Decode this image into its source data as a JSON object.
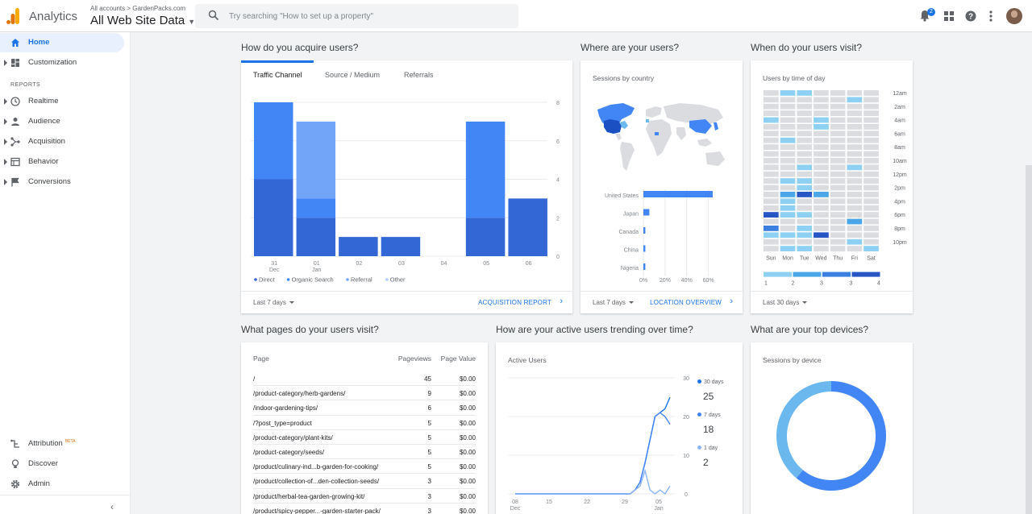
{
  "header": {
    "brand": "Analytics",
    "account_crumb": "All accounts > GardenPacks.com",
    "view_name": "All Web Site Data",
    "search_placeholder": "Try searching \"How to set up a property\"",
    "notification_count": "2",
    "icons": [
      "bell-icon",
      "apps-icon",
      "help-icon",
      "more-vert-icon"
    ]
  },
  "sidebar": {
    "items": [
      {
        "label": "Home",
        "icon": "home-icon",
        "active": true
      },
      {
        "label": "Customization",
        "icon": "dashboard-icon"
      },
      {
        "label": "Realtime",
        "icon": "clock-icon"
      },
      {
        "label": "Audience",
        "icon": "person-icon"
      },
      {
        "label": "Acquisition",
        "icon": "acquisition-icon"
      },
      {
        "label": "Behavior",
        "icon": "behavior-icon"
      },
      {
        "label": "Conversions",
        "icon": "flag-icon"
      }
    ],
    "reports_label": "REPORTS",
    "bottom_items": [
      {
        "label": "Attribution",
        "icon": "attribution-icon",
        "badge": "BETA"
      },
      {
        "label": "Discover",
        "icon": "bulb-icon"
      },
      {
        "label": "Admin",
        "icon": "gear-icon"
      }
    ]
  },
  "acquire": {
    "section_title": "How do you acquire users?",
    "tabs": [
      "Traffic Channel",
      "Source / Medium",
      "Referrals"
    ],
    "footer_range": "Last 7 days",
    "footer_link": "ACQUISITION REPORT",
    "chart_data": {
      "type": "bar",
      "stacked": true,
      "categories": [
        "31\nDec",
        "01\nJan",
        "02",
        "03",
        "04",
        "05",
        "06"
      ],
      "series": [
        {
          "name": "Direct",
          "color": "#3367d6",
          "values": [
            4,
            2,
            1,
            1,
            0,
            2,
            3
          ]
        },
        {
          "name": "Organic Search",
          "color": "#4285f4",
          "values": [
            4,
            1,
            0,
            0,
            0,
            5,
            0
          ]
        },
        {
          "name": "Referral",
          "color": "#72a4f7",
          "values": [
            0,
            4,
            0,
            0,
            0,
            0,
            0
          ]
        },
        {
          "name": "Other",
          "color": "#aecbfa",
          "values": [
            0,
            0,
            0,
            0,
            0,
            0,
            0
          ]
        }
      ],
      "y_ticks": [
        0,
        2,
        4,
        6,
        8
      ],
      "ylim": [
        0,
        8
      ]
    }
  },
  "where": {
    "section_title": "Where are your users?",
    "card_title": "Sessions by country",
    "footer_range": "Last 7 days",
    "footer_link": "LOCATION OVERVIEW",
    "chart_data": {
      "type": "bar",
      "orientation": "horizontal",
      "categories": [
        "United States",
        "Japan",
        "Canada",
        "China",
        "Nigeria"
      ],
      "values": [
        64,
        5.5,
        1.8,
        1.8,
        1.8
      ],
      "x_ticks": [
        "0%",
        "20%",
        "40%",
        "60%"
      ],
      "xlim": [
        0,
        70
      ]
    }
  },
  "when": {
    "section_title": "When do your users visit?",
    "card_title": "Users by time of day",
    "footer_range": "Last 30 days",
    "days": [
      "Sun",
      "Mon",
      "Tue",
      "Wed",
      "Thu",
      "Fri",
      "Sat"
    ],
    "hours": [
      "12am",
      "2am",
      "4am",
      "6am",
      "8am",
      "10am",
      "12pm",
      "2pm",
      "4pm",
      "6pm",
      "8pm",
      "10pm"
    ],
    "legend": [
      "1",
      "2",
      "3",
      "3",
      "4"
    ],
    "chart_data": {
      "type": "heatmap",
      "rows_are": "hour 0-23",
      "cols_are": "Sun..Sat",
      "values": [
        [
          0,
          1,
          1,
          0,
          0,
          0,
          0
        ],
        [
          0,
          0,
          0,
          0,
          0,
          1,
          0
        ],
        [
          0,
          0,
          0,
          0,
          0,
          0,
          0
        ],
        [
          0,
          0,
          0,
          0,
          0,
          0,
          0
        ],
        [
          1,
          0,
          0,
          1,
          0,
          0,
          0
        ],
        [
          0,
          0,
          0,
          1,
          0,
          0,
          0
        ],
        [
          0,
          0,
          0,
          0,
          0,
          0,
          0
        ],
        [
          0,
          1,
          0,
          0,
          0,
          0,
          0
        ],
        [
          0,
          0,
          0,
          0,
          0,
          0,
          0
        ],
        [
          0,
          0,
          0,
          0,
          0,
          0,
          0
        ],
        [
          0,
          0,
          0,
          0,
          0,
          0,
          0
        ],
        [
          0,
          0,
          1,
          0,
          0,
          1,
          0
        ],
        [
          0,
          0,
          0,
          0,
          0,
          0,
          0
        ],
        [
          0,
          1,
          1,
          0,
          0,
          0,
          0
        ],
        [
          0,
          0,
          1,
          0,
          0,
          0,
          0
        ],
        [
          0,
          2,
          4,
          2,
          0,
          0,
          0
        ],
        [
          0,
          1,
          0,
          0,
          0,
          0,
          0
        ],
        [
          0,
          1,
          0,
          0,
          0,
          0,
          0
        ],
        [
          4,
          1,
          1,
          0,
          0,
          0,
          0
        ],
        [
          0,
          0,
          0,
          0,
          0,
          2,
          0
        ],
        [
          3,
          0,
          1,
          0,
          0,
          0,
          0
        ],
        [
          1,
          1,
          1,
          4,
          0,
          0,
          0
        ],
        [
          0,
          0,
          0,
          0,
          0,
          1,
          0
        ],
        [
          0,
          1,
          1,
          0,
          0,
          0,
          1
        ]
      ]
    }
  },
  "pages": {
    "section_title": "What pages do your users visit?",
    "columns": [
      "Page",
      "Pageviews",
      "Page Value"
    ],
    "rows": [
      {
        "page": "/",
        "views": "45",
        "value": "$0.00"
      },
      {
        "page": "/product-category/herb-gardens/",
        "views": "9",
        "value": "$0.00"
      },
      {
        "page": "/indoor-gardening-tips/",
        "views": "6",
        "value": "$0.00"
      },
      {
        "page": "/?post_type=product",
        "views": "5",
        "value": "$0.00"
      },
      {
        "page": "/product-category/plant-kits/",
        "views": "5",
        "value": "$0.00"
      },
      {
        "page": "/product-category/seeds/",
        "views": "5",
        "value": "$0.00"
      },
      {
        "page": "/product/culinary-ind...b-garden-for-cooking/",
        "views": "5",
        "value": "$0.00"
      },
      {
        "page": "/product/collection-of...den-collection-seeds/",
        "views": "3",
        "value": "$0.00"
      },
      {
        "page": "/product/herbal-tea-garden-growing-kit/",
        "views": "3",
        "value": "$0.00"
      },
      {
        "page": "/product/spicy-pepper...-garden-starter-pack/",
        "views": "3",
        "value": "$0.00"
      }
    ]
  },
  "active": {
    "section_title": "How are your active users trending over time?",
    "card_title": "Active Users",
    "legend": [
      {
        "name": "30 days",
        "value": "25",
        "color": "#1a73e8"
      },
      {
        "name": "7 days",
        "value": "18",
        "color": "#4285f4"
      },
      {
        "name": "1 day",
        "value": "2",
        "color": "#8ab4f8"
      }
    ],
    "chart_data": {
      "type": "line",
      "x_ticks": [
        "08\nDec",
        "15",
        "22",
        "29",
        "05\nJan"
      ],
      "y_ticks": [
        0,
        10,
        20,
        30
      ],
      "ylim": [
        0,
        30
      ],
      "series": [
        {
          "name": "30 days",
          "values": [
            0,
            0,
            0,
            0,
            0,
            0,
            0,
            0,
            0,
            0,
            0,
            0,
            0,
            0,
            0,
            0,
            0,
            0,
            0,
            0,
            0,
            0,
            0,
            0,
            1,
            3,
            8,
            14,
            20,
            21,
            22,
            25
          ]
        },
        {
          "name": "7 days",
          "values": [
            0,
            0,
            0,
            0,
            0,
            0,
            0,
            0,
            0,
            0,
            0,
            0,
            0,
            0,
            0,
            0,
            0,
            0,
            0,
            0,
            0,
            0,
            0,
            0,
            1,
            3,
            8,
            14,
            20,
            21,
            20,
            18
          ]
        },
        {
          "name": "1 day",
          "values": [
            0,
            0,
            0,
            0,
            0,
            0,
            0,
            0,
            0,
            0,
            0,
            0,
            0,
            0,
            0,
            0,
            0,
            0,
            0,
            0,
            0,
            0,
            0,
            0,
            1,
            2,
            6,
            1,
            0,
            1,
            0,
            2
          ]
        }
      ]
    }
  },
  "devices": {
    "section_title": "What are your top devices?",
    "card_title": "Sessions by device",
    "chart_data": {
      "type": "pie",
      "donut": true,
      "values": [
        61,
        39
      ],
      "colors": [
        "#4285f4",
        "#6bb8ee"
      ]
    }
  }
}
